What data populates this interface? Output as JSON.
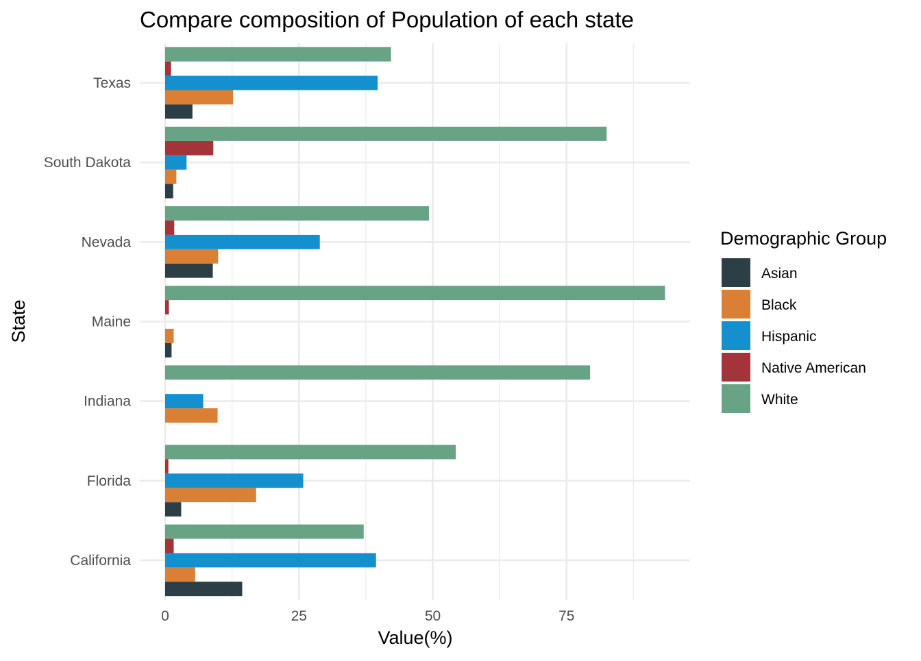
{
  "chart_data": {
    "type": "bar",
    "orientation": "horizontal",
    "title": "Compare composition of Population of each state",
    "xlabel": "Value(%)",
    "ylabel": "State",
    "xlim": [
      0,
      98
    ],
    "x_ticks": [
      0,
      25,
      50,
      75
    ],
    "categories": [
      "California",
      "Florida",
      "Indiana",
      "Maine",
      "Nevada",
      "South Dakota",
      "Texas"
    ],
    "legend_title": "Demographic Group",
    "legend_position": "right",
    "grid": true,
    "series": [
      {
        "name": "Asian",
        "color": "#2c3e46",
        "values": [
          14.4,
          3.0,
          null,
          1.2,
          8.9,
          1.5,
          5.1
        ]
      },
      {
        "name": "Black",
        "color": "#d97f36",
        "values": [
          5.6,
          17.0,
          9.8,
          1.6,
          9.9,
          2.1,
          12.7
        ]
      },
      {
        "name": "Hispanic",
        "color": "#1490cf",
        "values": [
          39.4,
          25.8,
          7.1,
          null,
          28.9,
          4.0,
          39.7
        ]
      },
      {
        "name": "Native American",
        "color": "#a2343a",
        "values": [
          1.6,
          0.6,
          null,
          0.7,
          1.7,
          9.0,
          1.1
        ]
      },
      {
        "name": "White",
        "color": "#68a386",
        "values": [
          37.1,
          54.3,
          79.4,
          93.4,
          49.3,
          82.5,
          42.2
        ]
      }
    ]
  }
}
